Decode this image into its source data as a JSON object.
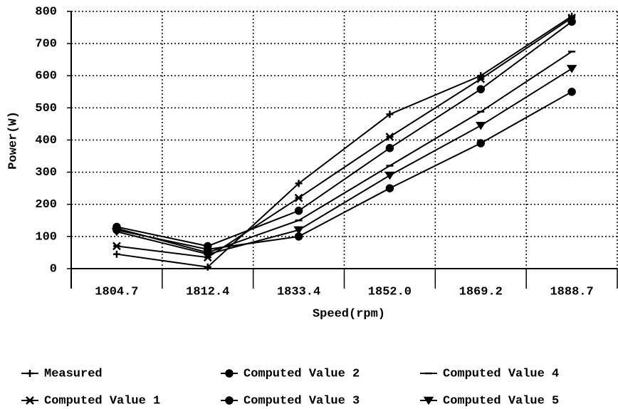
{
  "chart_data": {
    "type": "line",
    "x_label": "Speed(rpm)",
    "y_label": "Power(W)",
    "categories": [
      "1804.7",
      "1812.4",
      "1833.4",
      "1852.0",
      "1869.2",
      "1888.7"
    ],
    "series": [
      {
        "name": "Measured",
        "color": "#000000",
        "marker": "plus",
        "values": [
          45,
          5,
          265,
          480,
          600,
          785
        ]
      },
      {
        "name": "Computed Value 1",
        "color": "#000000",
        "marker": "cross",
        "values": [
          70,
          35,
          220,
          410,
          590,
          780
        ]
      },
      {
        "name": "Computed Value 2",
        "color": "#000000",
        "marker": "circle",
        "values": [
          130,
          70,
          180,
          375,
          558,
          768
        ]
      },
      {
        "name": "Computed Value 3",
        "color": "#000000",
        "marker": "circle",
        "values": [
          120,
          60,
          100,
          250,
          390,
          550
        ]
      },
      {
        "name": "Computed Value 4",
        "color": "#000000",
        "marker": "dash",
        "values": [
          125,
          50,
          150,
          320,
          488,
          675
        ]
      },
      {
        "name": "Computed Value 5",
        "color": "#000000",
        "marker": "triangle-down",
        "values": [
          115,
          45,
          120,
          290,
          445,
          622
        ]
      }
    ],
    "ylim": [
      0,
      800
    ],
    "yticks": [
      0,
      100,
      200,
      300,
      400,
      500,
      600,
      700,
      800
    ],
    "grid": true,
    "legend": "bottom"
  }
}
